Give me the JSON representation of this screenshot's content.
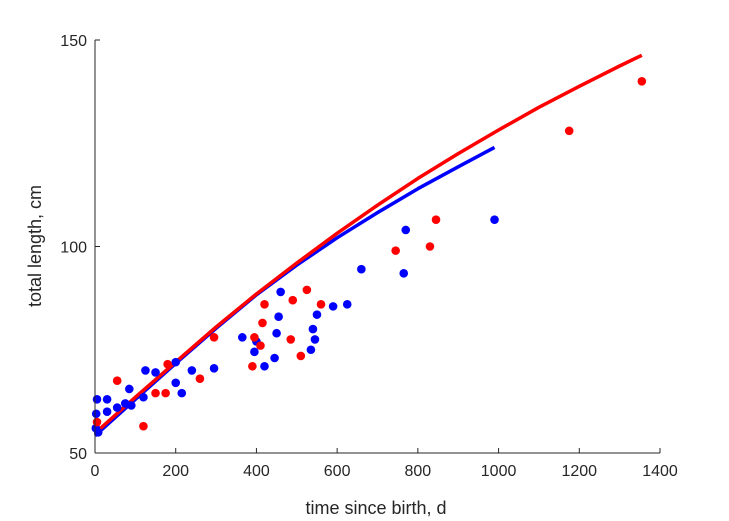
{
  "chart_data": {
    "type": "scatter",
    "xlabel": "time since birth, d",
    "ylabel": "total length, cm",
    "xlim": [
      0,
      1400
    ],
    "ylim": [
      50,
      150
    ],
    "xticks": [
      0,
      200,
      400,
      600,
      800,
      1000,
      1200,
      1400
    ],
    "yticks": [
      50,
      100,
      150
    ],
    "grid": false,
    "legend": "none",
    "series": [
      {
        "kind": "points",
        "color": "#0000ff",
        "x": [
          2,
          3,
          5,
          8,
          30,
          30,
          55,
          75,
          85,
          90,
          120,
          125,
          150,
          200,
          200,
          215,
          240,
          295,
          365,
          395,
          400,
          420,
          445,
          450,
          455,
          460,
          535,
          540,
          545,
          550,
          590,
          625,
          660,
          765,
          770,
          990
        ],
        "y": [
          56,
          59.5,
          63,
          55,
          63,
          60,
          61,
          62,
          65.5,
          61.5,
          63.5,
          70,
          69.5,
          72,
          67,
          64.5,
          70,
          70.5,
          78,
          74.5,
          77,
          71,
          73,
          79,
          83,
          89,
          75,
          80,
          77.5,
          83.5,
          85.5,
          86,
          94.5,
          93.5,
          104,
          106.5
        ]
      },
      {
        "kind": "points",
        "color": "#ff0000",
        "x": [
          5,
          55,
          120,
          150,
          175,
          180,
          260,
          295,
          390,
          395,
          410,
          415,
          420,
          485,
          490,
          510,
          525,
          560,
          745,
          830,
          845,
          1175,
          1355
        ],
        "y": [
          57.5,
          67.5,
          56.5,
          64.5,
          64.5,
          71.5,
          68,
          78,
          71,
          78,
          76,
          81.5,
          86,
          77.5,
          87,
          73.5,
          89.5,
          86,
          99,
          100,
          106.5,
          128,
          140
        ]
      },
      {
        "kind": "line",
        "color": "#0000ff",
        "x": [
          0,
          100,
          200,
          300,
          400,
          500,
          600,
          700,
          800,
          900,
          990
        ],
        "y": [
          54.2,
          63,
          71.7,
          80.2,
          88.3,
          95.5,
          102.1,
          108.2,
          114,
          119.3,
          124
        ]
      },
      {
        "kind": "line",
        "color": "#ff0000",
        "x": [
          0,
          100,
          200,
          300,
          400,
          500,
          600,
          700,
          800,
          900,
          1000,
          1100,
          1200,
          1300,
          1355
        ],
        "y": [
          54.8,
          63.5,
          72,
          80.5,
          88.5,
          96,
          103.2,
          110,
          116.5,
          122.5,
          128.2,
          133.7,
          138.8,
          143.7,
          146.3
        ]
      }
    ]
  }
}
